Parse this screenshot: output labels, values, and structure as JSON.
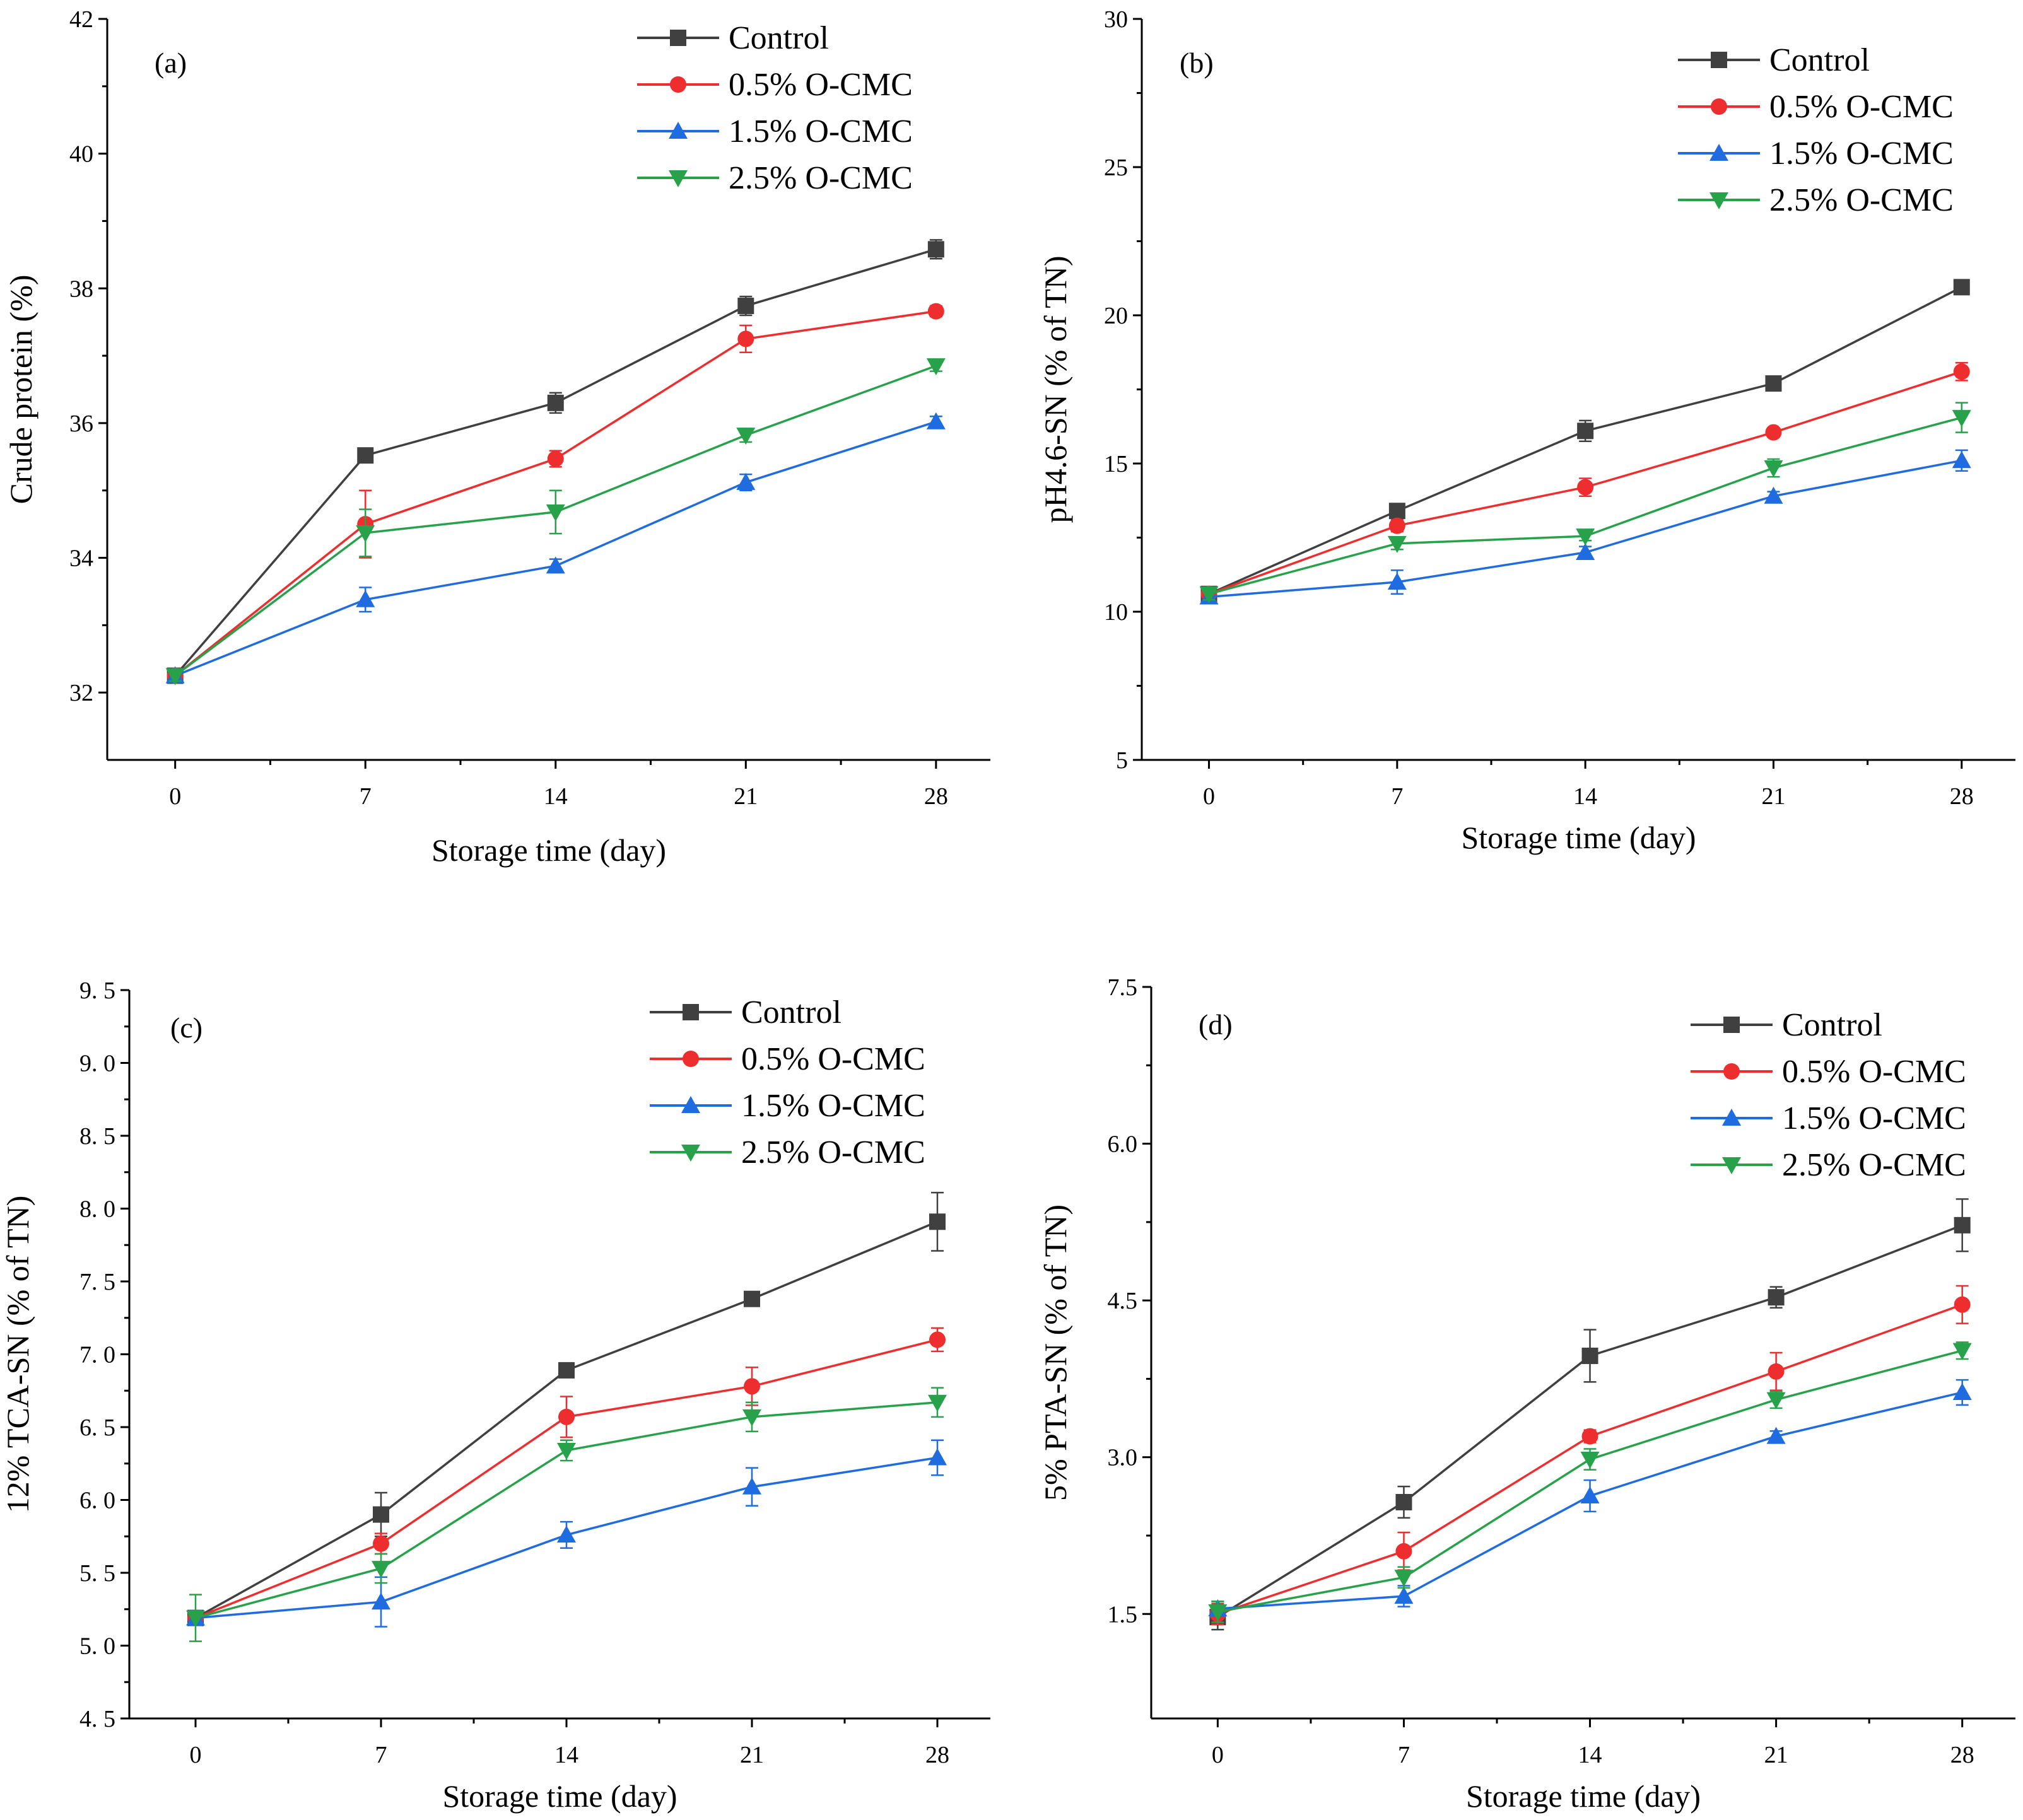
{
  "chart_data": [
    {
      "type": "line",
      "panel_label": "(a)",
      "xlabel": "Storage time (day)",
      "ylabel": "Crude protein (%)",
      "x": [
        0,
        7,
        14,
        21,
        28
      ],
      "x_ticks": [
        "0",
        "7",
        "14",
        "21",
        "28"
      ],
      "xlim": [
        -2.5,
        30
      ],
      "ylim": [
        31,
        42
      ],
      "y_ticks": [
        "32",
        "34",
        "36",
        "38",
        "40",
        "42"
      ],
      "y_tick_values": [
        32,
        34,
        36,
        38,
        40,
        42
      ],
      "legend_position": "top-right",
      "series": [
        {
          "name": "Control",
          "color": "#404040",
          "marker": "square",
          "values": [
            32.25,
            35.52,
            36.3,
            37.74,
            38.58
          ],
          "errors": [
            0.08,
            0.08,
            0.15,
            0.14,
            0.14
          ]
        },
        {
          "name": "0.5% O-CMC",
          "color": "#ee2e2e",
          "marker": "circle",
          "values": [
            32.25,
            34.5,
            35.47,
            37.25,
            37.66
          ],
          "errors": [
            0.08,
            0.5,
            0.12,
            0.2,
            0.08
          ]
        },
        {
          "name": "1.5% O-CMC",
          "color": "#1f6be0",
          "marker": "triangle-up",
          "values": [
            32.25,
            33.38,
            33.88,
            35.12,
            36.02
          ],
          "errors": [
            0.08,
            0.18,
            0.1,
            0.12,
            0.08
          ]
        },
        {
          "name": "2.5% O-CMC",
          "color": "#27a24a",
          "marker": "triangle-down",
          "values": [
            32.25,
            34.37,
            34.68,
            35.82,
            36.85
          ],
          "errors": [
            0.08,
            0.35,
            0.32,
            0.1,
            0.08
          ]
        }
      ]
    },
    {
      "type": "line",
      "panel_label": "(b)",
      "xlabel": "Storage time (day)",
      "ylabel": "pH4.6-SN (% of TN)",
      "x": [
        0,
        7,
        14,
        21,
        28
      ],
      "x_ticks": [
        "0",
        "7",
        "14",
        "21",
        "28"
      ],
      "xlim": [
        -2.5,
        30
      ],
      "ylim": [
        5,
        30
      ],
      "y_ticks": [
        "5",
        "10",
        "15",
        "20",
        "25",
        "30"
      ],
      "y_tick_values": [
        5,
        10,
        15,
        20,
        25,
        30
      ],
      "legend_position": "top-right",
      "series": [
        {
          "name": "Control",
          "color": "#404040",
          "marker": "square",
          "values": [
            10.6,
            13.4,
            16.1,
            17.7,
            20.95
          ],
          "errors": [
            0.2,
            0.2,
            0.35,
            0.2,
            0.15
          ]
        },
        {
          "name": "0.5% O-CMC",
          "color": "#ee2e2e",
          "marker": "circle",
          "values": [
            10.6,
            12.9,
            14.2,
            16.05,
            18.1
          ],
          "errors": [
            0.2,
            0.2,
            0.3,
            0.15,
            0.3
          ]
        },
        {
          "name": "1.5% O-CMC",
          "color": "#1f6be0",
          "marker": "triangle-up",
          "values": [
            10.5,
            11.0,
            12.0,
            13.9,
            15.1
          ],
          "errors": [
            0.2,
            0.4,
            0.2,
            0.15,
            0.35
          ]
        },
        {
          "name": "2.5% O-CMC",
          "color": "#27a24a",
          "marker": "triangle-down",
          "values": [
            10.6,
            12.3,
            12.55,
            14.85,
            16.55
          ],
          "errors": [
            0.2,
            0.2,
            0.15,
            0.3,
            0.5
          ]
        }
      ]
    },
    {
      "type": "line",
      "panel_label": "(c)",
      "xlabel": "Storage time (day)",
      "ylabel": "12% TCA-SN (% of TN)",
      "x": [
        0,
        7,
        14,
        21,
        28
      ],
      "x_ticks": [
        "0",
        "7",
        "14",
        "21",
        "28"
      ],
      "xlim": [
        -2.5,
        30
      ],
      "ylim": [
        4.5,
        9.5
      ],
      "y_ticks": [
        "4. 5",
        "5. 0",
        "5. 5",
        "6. 0",
        "6. 5",
        "7. 0",
        "7. 5",
        "8. 0",
        "8. 5",
        "9. 0",
        "9. 5"
      ],
      "y_tick_values": [
        4.5,
        5.0,
        5.5,
        6.0,
        6.5,
        7.0,
        7.5,
        8.0,
        8.5,
        9.0,
        9.5
      ],
      "legend_position": "top-right",
      "series": [
        {
          "name": "Control",
          "color": "#404040",
          "marker": "square",
          "values": [
            5.19,
            5.9,
            6.89,
            7.38,
            7.91
          ],
          "errors": [
            0.05,
            0.15,
            0.03,
            0.03,
            0.2
          ]
        },
        {
          "name": "0.5% O-CMC",
          "color": "#ee2e2e",
          "marker": "circle",
          "values": [
            5.19,
            5.7,
            6.57,
            6.78,
            7.1
          ],
          "errors": [
            0.05,
            0.07,
            0.14,
            0.13,
            0.08
          ]
        },
        {
          "name": "1.5% O-CMC",
          "color": "#1f6be0",
          "marker": "triangle-up",
          "values": [
            5.19,
            5.3,
            5.76,
            6.09,
            6.29
          ],
          "errors": [
            0.05,
            0.17,
            0.09,
            0.13,
            0.12
          ]
        },
        {
          "name": "2.5% O-CMC",
          "color": "#27a24a",
          "marker": "triangle-down",
          "values": [
            5.19,
            5.53,
            6.34,
            6.57,
            6.67
          ],
          "errors": [
            0.16,
            0.1,
            0.07,
            0.1,
            0.1
          ]
        }
      ]
    },
    {
      "type": "line",
      "panel_label": "(d)",
      "xlabel": "Storage time (day)",
      "ylabel": "5% PTA-SN (% of TN)",
      "x": [
        0,
        7,
        14,
        21,
        28
      ],
      "x_ticks": [
        "0",
        "7",
        "14",
        "21",
        "28"
      ],
      "xlim": [
        -2.5,
        30
      ],
      "ylim": [
        0.5,
        7.5
      ],
      "y_ticks": [
        "1.5",
        "3.0",
        "4.5",
        "6.0",
        "7.5"
      ],
      "y_tick_values": [
        1.5,
        3.0,
        4.5,
        6.0,
        7.5
      ],
      "legend_position": "top-right",
      "series": [
        {
          "name": "Control",
          "color": "#404040",
          "marker": "square",
          "values": [
            1.47,
            2.57,
            3.97,
            4.53,
            5.22
          ],
          "errors": [
            0.12,
            0.15,
            0.25,
            0.1,
            0.25
          ]
        },
        {
          "name": "0.5% O-CMC",
          "color": "#ee2e2e",
          "marker": "circle",
          "values": [
            1.5,
            2.1,
            3.2,
            3.82,
            4.46
          ],
          "errors": [
            0.1,
            0.18,
            0.06,
            0.18,
            0.18
          ]
        },
        {
          "name": "1.5% O-CMC",
          "color": "#1f6be0",
          "marker": "triangle-up",
          "values": [
            1.55,
            1.67,
            2.63,
            3.2,
            3.62
          ],
          "errors": [
            0.07,
            0.1,
            0.15,
            0.05,
            0.12
          ]
        },
        {
          "name": "2.5% O-CMC",
          "color": "#27a24a",
          "marker": "triangle-down",
          "values": [
            1.52,
            1.85,
            2.98,
            3.55,
            4.02
          ],
          "errors": [
            0.1,
            0.1,
            0.1,
            0.08,
            0.08
          ]
        }
      ]
    }
  ]
}
